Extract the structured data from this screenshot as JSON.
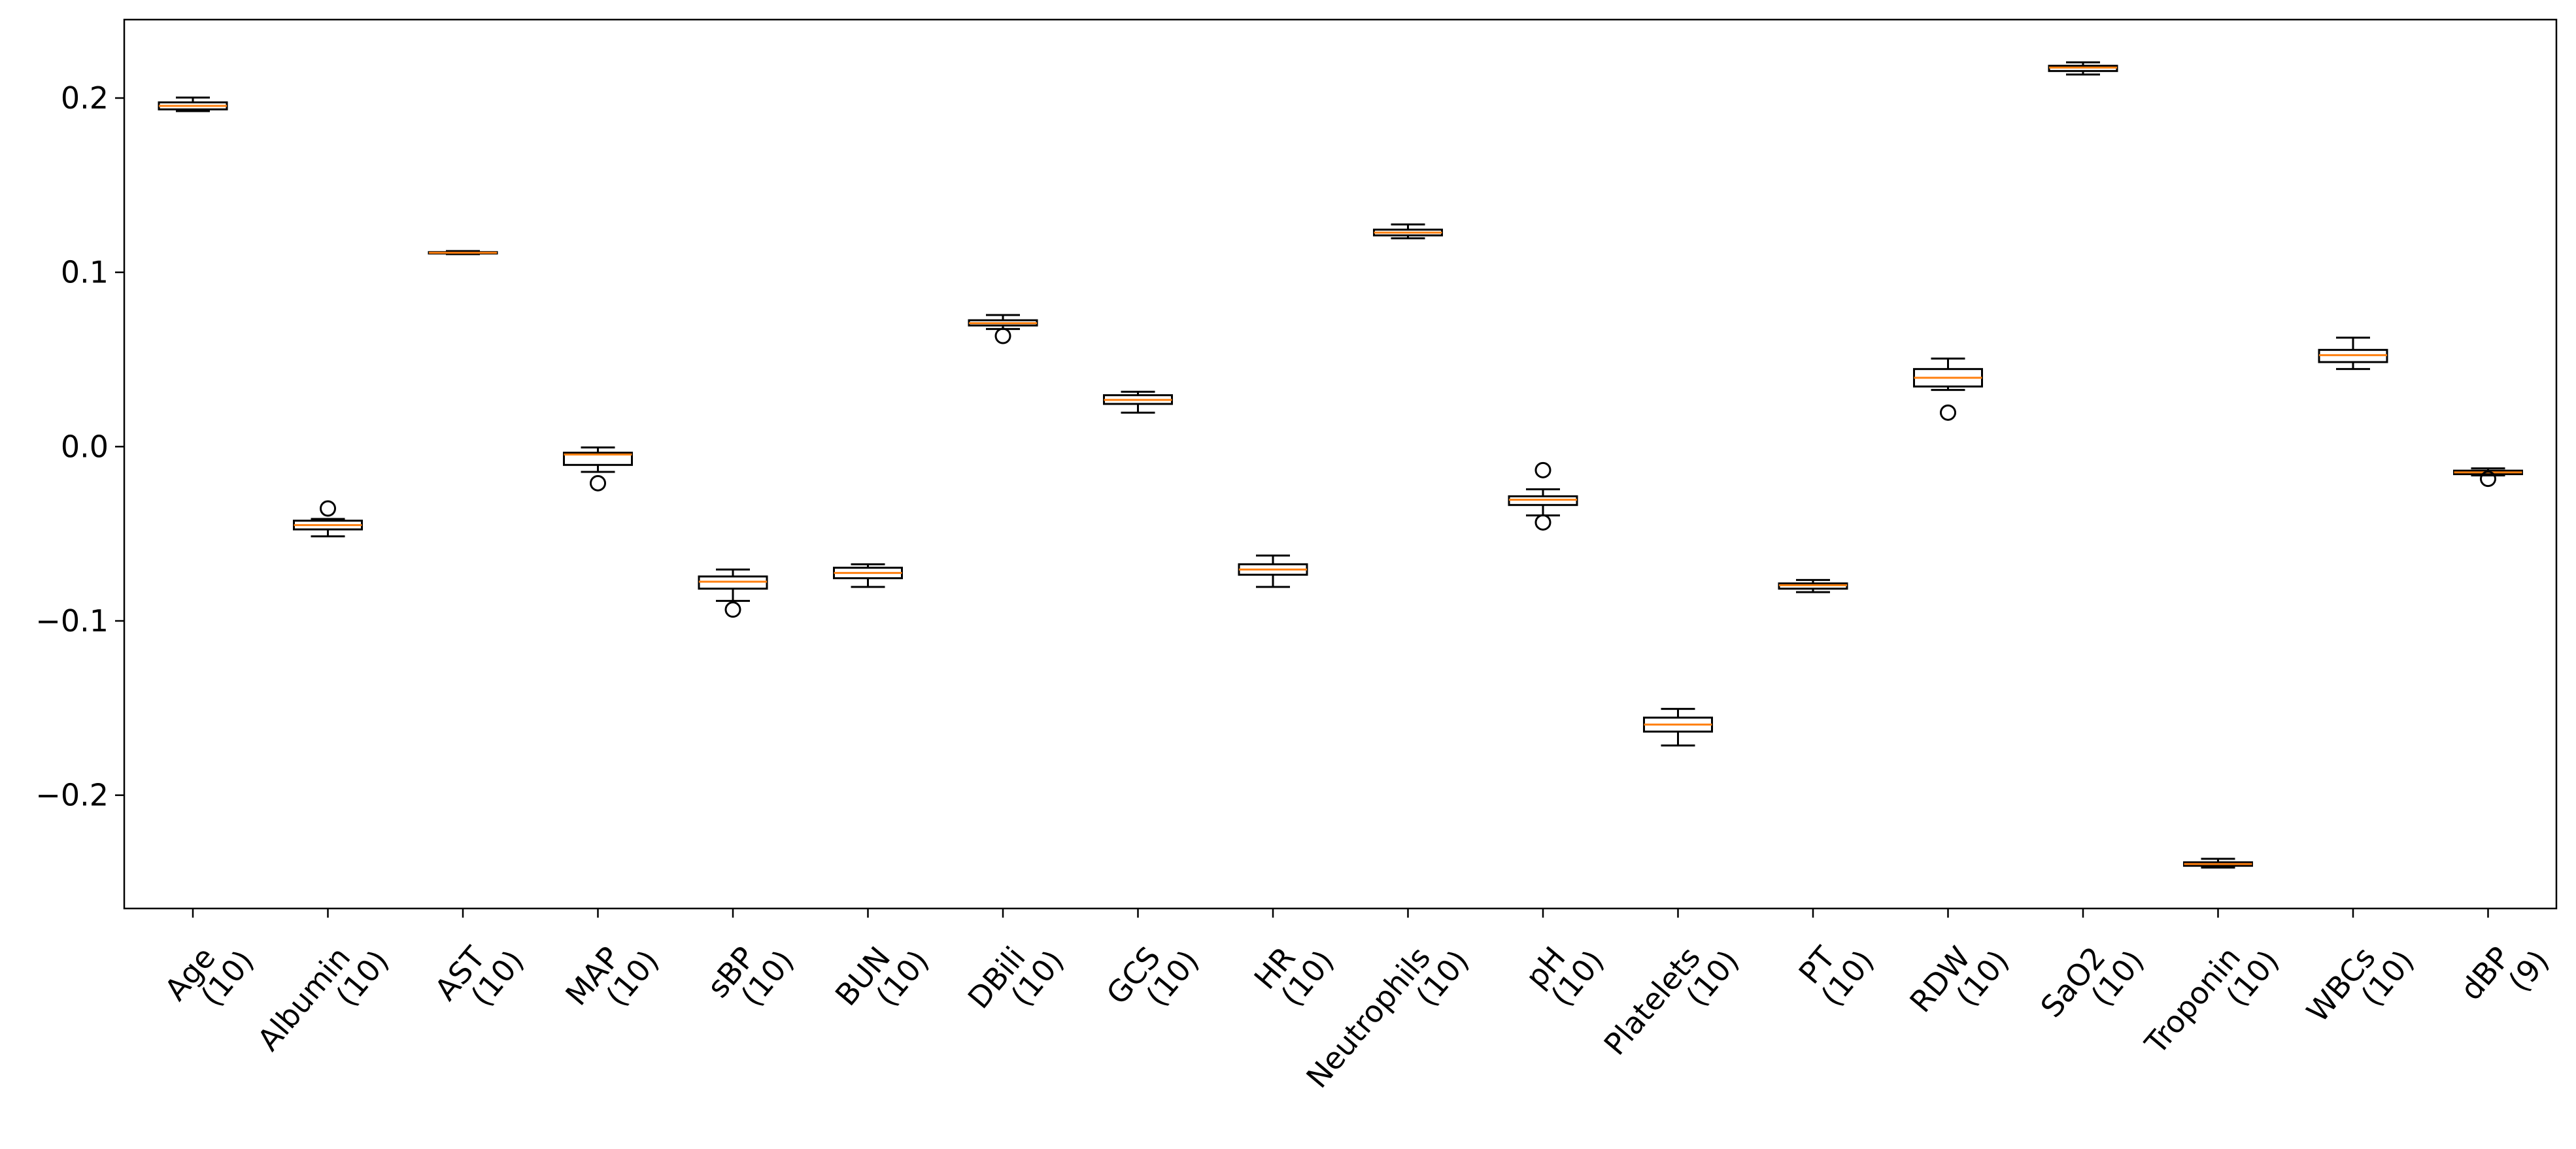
{
  "chart_data": {
    "type": "boxplot",
    "title": "",
    "xlabel": "",
    "ylabel": "",
    "ylim": [
      -0.265,
      0.245
    ],
    "yticks": [
      -0.2,
      -0.1,
      0.0,
      0.1,
      0.2
    ],
    "ytick_labels": [
      "−0.2",
      "−0.1",
      "0.0",
      "0.1",
      "0.2"
    ],
    "grid": false,
    "legend": "none",
    "colors": {
      "box": "#000000",
      "median": "#ff7f0e",
      "axes": "#000000"
    },
    "categories": [
      {
        "name": "Age",
        "count": "(10)",
        "whislo": 0.1925,
        "q1": 0.1935,
        "median": 0.1955,
        "q3": 0.1975,
        "whishi": 0.2003,
        "fliers": []
      },
      {
        "name": "Albumin",
        "count": "(10)",
        "whislo": -0.0515,
        "q1": -0.0475,
        "median": -0.045,
        "q3": -0.0425,
        "whishi": -0.0415,
        "fliers": [
          -0.0355
        ]
      },
      {
        "name": "AST",
        "count": "(10)",
        "whislo": 0.1104,
        "q1": 0.1108,
        "median": 0.1112,
        "q3": 0.1116,
        "whishi": 0.1122,
        "fliers": []
      },
      {
        "name": "MAP",
        "count": "(10)",
        "whislo": -0.0145,
        "q1": -0.0105,
        "median": -0.0045,
        "q3": -0.0035,
        "whishi": -0.0005,
        "fliers": [
          -0.021
        ]
      },
      {
        "name": "sBP",
        "count": "(10)",
        "whislo": -0.0885,
        "q1": -0.0815,
        "median": -0.0775,
        "q3": -0.0745,
        "whishi": -0.0705,
        "fliers": [
          -0.0935
        ]
      },
      {
        "name": "BUN",
        "count": "(10)",
        "whislo": -0.0805,
        "q1": -0.0755,
        "median": -0.0725,
        "q3": -0.0695,
        "whishi": -0.0675,
        "fliers": []
      },
      {
        "name": "DBili",
        "count": "(10)",
        "whislo": 0.0675,
        "q1": 0.0695,
        "median": 0.0708,
        "q3": 0.0725,
        "whishi": 0.0755,
        "fliers": [
          0.0635
        ]
      },
      {
        "name": "GCS",
        "count": "(10)",
        "whislo": 0.0195,
        "q1": 0.0245,
        "median": 0.0268,
        "q3": 0.0295,
        "whishi": 0.0315,
        "fliers": []
      },
      {
        "name": "HR",
        "count": "(10)",
        "whislo": -0.0805,
        "q1": -0.0735,
        "median": -0.0705,
        "q3": -0.0675,
        "whishi": -0.0625,
        "fliers": []
      },
      {
        "name": "Neutrophils",
        "count": "(10)",
        "whislo": 0.1195,
        "q1": 0.1212,
        "median": 0.1228,
        "q3": 0.1245,
        "whishi": 0.1275,
        "fliers": []
      },
      {
        "name": "pH",
        "count": "(10)",
        "whislo": -0.0395,
        "q1": -0.0335,
        "median": -0.0305,
        "q3": -0.0285,
        "whishi": -0.0245,
        "fliers": [
          -0.0135,
          -0.0435
        ]
      },
      {
        "name": "Platelets",
        "count": "(10)",
        "whislo": -0.1715,
        "q1": -0.1635,
        "median": -0.1595,
        "q3": -0.1555,
        "whishi": -0.1505,
        "fliers": []
      },
      {
        "name": "PT",
        "count": "(10)",
        "whislo": -0.0835,
        "q1": -0.0815,
        "median": -0.0795,
        "q3": -0.0785,
        "whishi": -0.0765,
        "fliers": []
      },
      {
        "name": "RDW",
        "count": "(10)",
        "whislo": 0.0325,
        "q1": 0.0345,
        "median": 0.0395,
        "q3": 0.0445,
        "whishi": 0.0505,
        "fliers": [
          0.0195
        ]
      },
      {
        "name": "SaO2",
        "count": "(10)",
        "whislo": 0.2135,
        "q1": 0.2155,
        "median": 0.2175,
        "q3": 0.2185,
        "whishi": 0.2205,
        "fliers": []
      },
      {
        "name": "Troponin",
        "count": "(10)",
        "whislo": -0.2415,
        "q1": -0.2405,
        "median": -0.2395,
        "q3": -0.2385,
        "whishi": -0.2365,
        "fliers": []
      },
      {
        "name": "WBCs",
        "count": "(10)",
        "whislo": 0.0445,
        "q1": 0.0485,
        "median": 0.0525,
        "q3": 0.0555,
        "whishi": 0.0625,
        "fliers": []
      },
      {
        "name": "dBP",
        "count": "(9)",
        "whislo": -0.0165,
        "q1": -0.0158,
        "median": -0.0148,
        "q3": -0.0138,
        "whishi": -0.0125,
        "fliers": [
          -0.0185
        ]
      }
    ]
  }
}
